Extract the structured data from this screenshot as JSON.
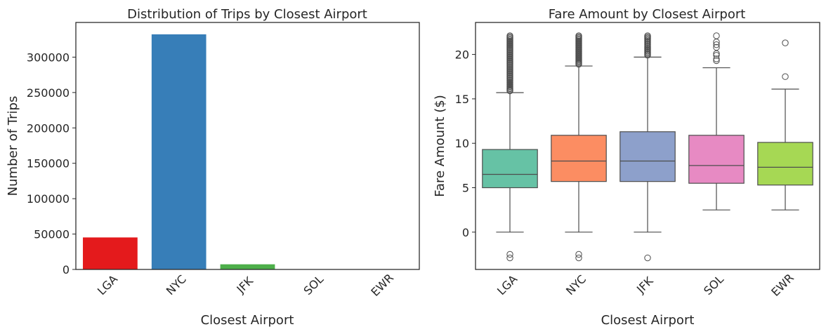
{
  "chart_data": [
    {
      "type": "bar",
      "title": "Distribution of Trips by Closest Airport",
      "xlabel": "Closest Airport",
      "ylabel": "Number of Trips",
      "categories": [
        "LGA",
        "NYC",
        "JFK",
        "SOL",
        "EWR"
      ],
      "values": [
        45500,
        332500,
        7500,
        100,
        30
      ],
      "colors": [
        "#e41a1c",
        "#377eb8",
        "#4daf4a",
        "#984ea3",
        "#ff7f00"
      ],
      "ylim": [
        0,
        349000
      ],
      "yticks": [
        0,
        50000,
        100000,
        150000,
        200000,
        250000,
        300000
      ],
      "grid": false
    },
    {
      "type": "box",
      "title": "Fare Amount by Closest Airport",
      "xlabel": "Closest Airport",
      "ylabel": "Fare Amount ($)",
      "categories": [
        "LGA",
        "NYC",
        "JFK",
        "SOL",
        "EWR"
      ],
      "colors": [
        "#66c2a5",
        "#fc8d62",
        "#8da0cb",
        "#e78ac3",
        "#a6d854"
      ],
      "ylim": [
        -4.2,
        23.6
      ],
      "yticks": [
        0,
        5,
        10,
        15,
        20
      ],
      "grid": false,
      "boxes": [
        {
          "q1": 5.0,
          "median": 6.5,
          "q3": 9.3,
          "whisker_low": 0.0,
          "whisker_high": 15.7,
          "outliers_high_min": 15.9,
          "outliers_high_max": 22.1,
          "outliers": [
            -2.5,
            -2.9
          ]
        },
        {
          "q1": 5.7,
          "median": 8.0,
          "q3": 10.9,
          "whisker_low": 0.0,
          "whisker_high": 18.7,
          "outliers_high_min": 18.9,
          "outliers_high_max": 22.1,
          "outliers": [
            -2.5,
            -2.9
          ]
        },
        {
          "q1": 5.7,
          "median": 8.0,
          "q3": 11.3,
          "whisker_low": 0.0,
          "whisker_high": 19.7,
          "outliers_high_min": 19.9,
          "outliers_high_max": 22.1,
          "outliers": [
            -2.9
          ]
        },
        {
          "q1": 5.5,
          "median": 7.5,
          "q3": 10.9,
          "whisker_low": 2.5,
          "whisker_high": 18.5,
          "outliers_high_min": null,
          "outliers_high_max": null,
          "outliers": [
            19.3,
            19.5,
            19.9,
            20.1,
            20.8,
            21.1,
            21.4,
            22.1
          ]
        },
        {
          "q1": 5.3,
          "median": 7.3,
          "q3": 10.1,
          "whisker_low": 2.5,
          "whisker_high": 16.1,
          "outliers_high_min": null,
          "outliers_high_max": null,
          "outliers": [
            17.5,
            21.3
          ]
        }
      ]
    }
  ]
}
